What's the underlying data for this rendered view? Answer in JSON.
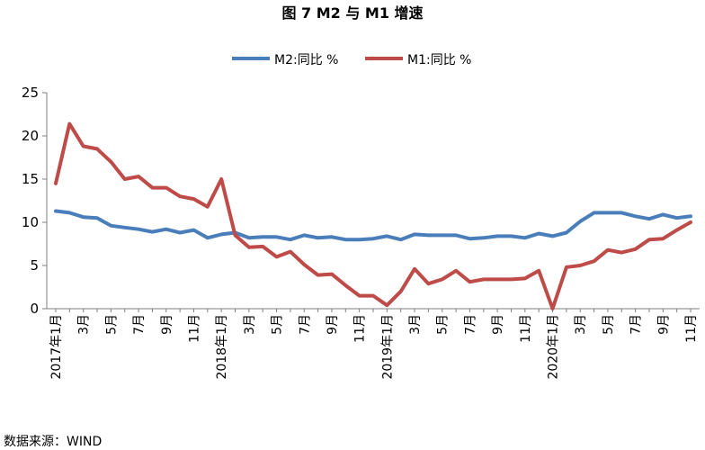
{
  "chart_data": {
    "type": "line",
    "title": "图 7   M2 与 M1 增速",
    "xlabel": "",
    "ylabel": "",
    "ylim": [
      0,
      25
    ],
    "yticks": [
      "0",
      "5",
      "10",
      "15",
      "20",
      "25"
    ],
    "grid": false,
    "legend": "top-center",
    "x_tick_labels": [
      "2017年1月",
      "3月",
      "5月",
      "7月",
      "9月",
      "11月",
      "2018年1月",
      "3月",
      "5月",
      "7月",
      "9月",
      "11月",
      "2019年1月",
      "3月",
      "5月",
      "7月",
      "9月",
      "11月",
      "2020年1月",
      "3月",
      "5月",
      "7月",
      "9月",
      "11月"
    ],
    "series": [
      {
        "name": "M2:同比 %",
        "color": "#4a7ebb",
        "values": [
          11.3,
          11.1,
          10.6,
          10.5,
          9.6,
          9.4,
          9.2,
          8.9,
          9.2,
          8.8,
          9.1,
          8.2,
          8.6,
          8.8,
          8.2,
          8.3,
          8.3,
          8.0,
          8.5,
          8.2,
          8.3,
          8.0,
          8.0,
          8.1,
          8.4,
          8.0,
          8.6,
          8.5,
          8.5,
          8.5,
          8.1,
          8.2,
          8.4,
          8.4,
          8.2,
          8.7,
          8.4,
          8.8,
          10.1,
          11.1,
          11.1,
          11.1,
          10.7,
          10.4,
          10.9,
          10.5,
          10.7
        ]
      },
      {
        "name": "M1:同比 %",
        "color": "#be4b48",
        "values": [
          14.5,
          21.4,
          18.8,
          18.5,
          17.0,
          15.0,
          15.3,
          14.0,
          14.0,
          13.0,
          12.7,
          11.8,
          15.0,
          8.5,
          7.1,
          7.2,
          6.0,
          6.6,
          5.1,
          3.9,
          4.0,
          2.7,
          1.5,
          1.5,
          0.4,
          2.0,
          4.6,
          2.9,
          3.4,
          4.4,
          3.1,
          3.4,
          3.4,
          3.4,
          3.5,
          4.4,
          0.0,
          4.8,
          5.0,
          5.5,
          6.8,
          6.5,
          6.9,
          8.0,
          8.1,
          9.1,
          10.0
        ]
      }
    ]
  },
  "source": "数据来源：WIND"
}
